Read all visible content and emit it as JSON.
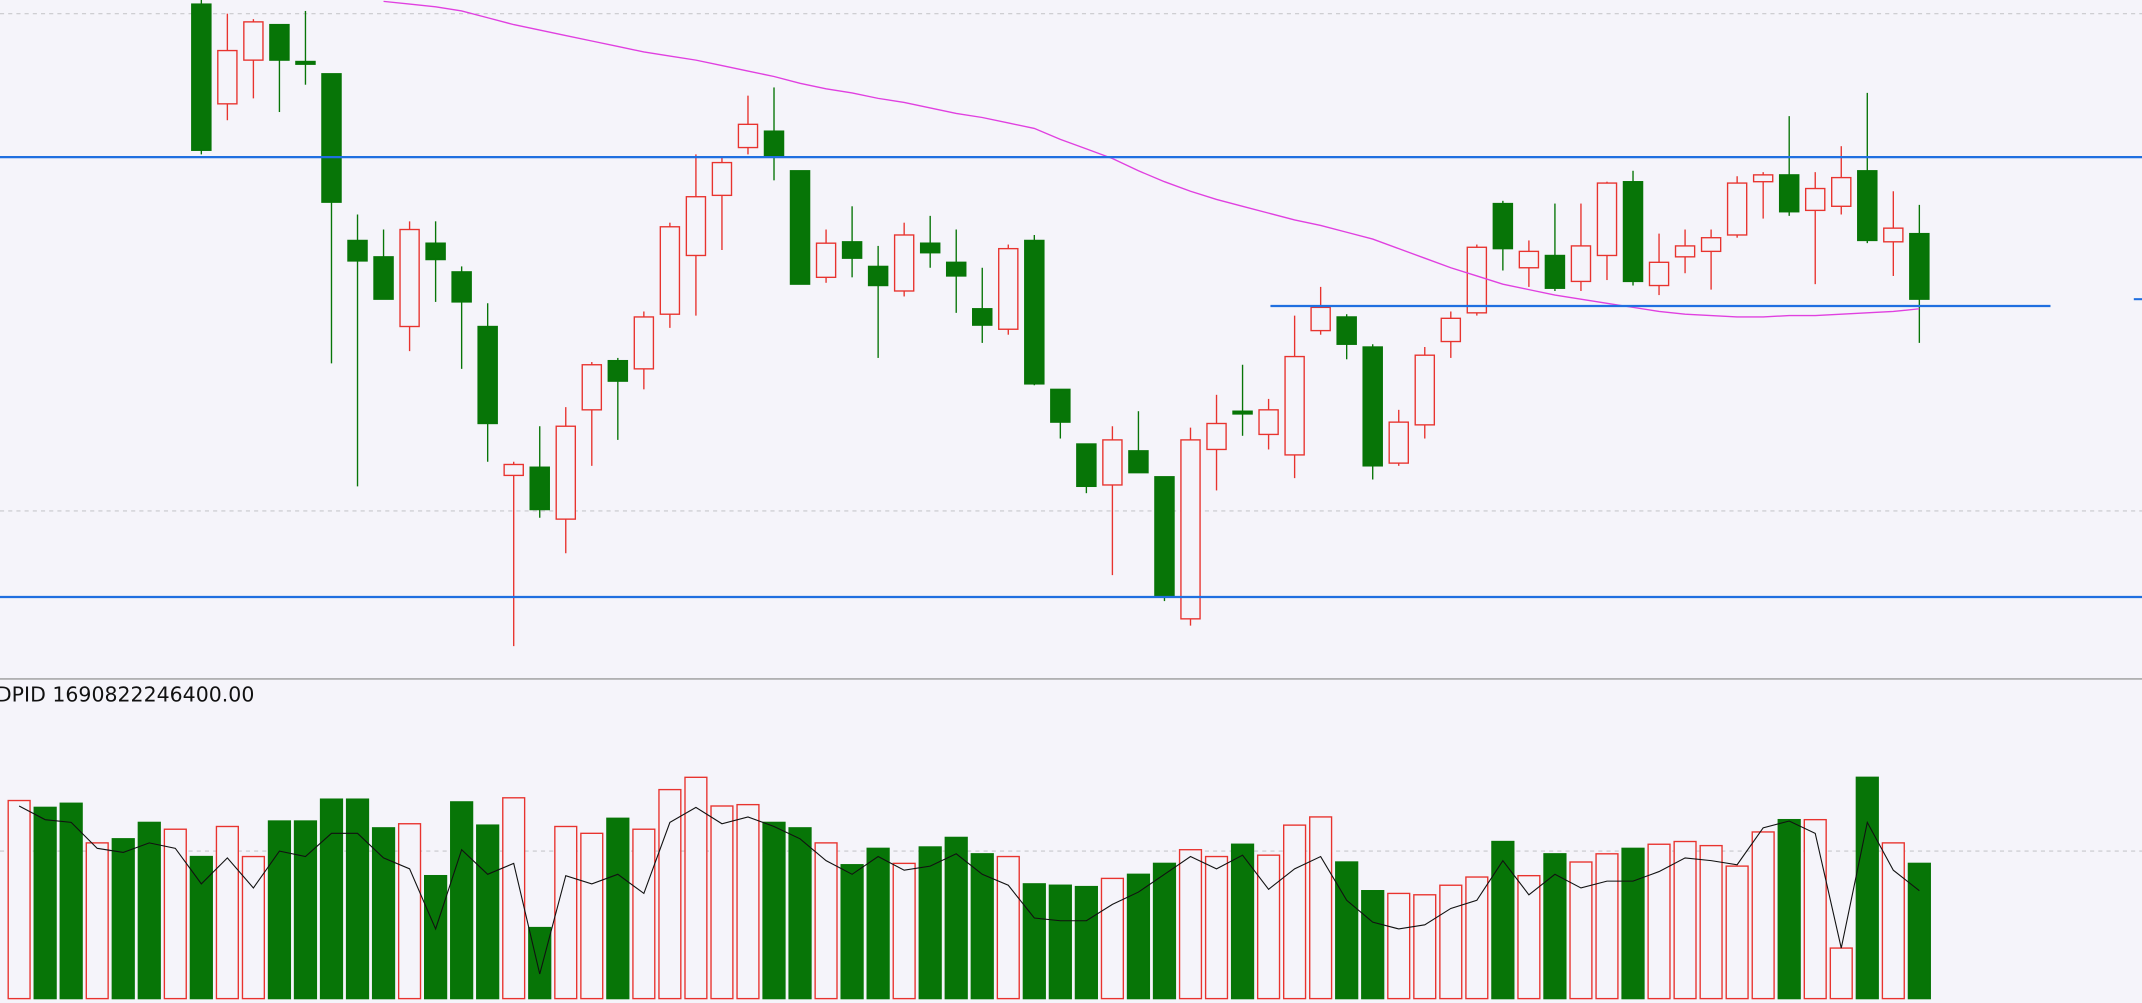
{
  "chart_data": {
    "type": "candlestick",
    "indicator_label": "DPID 1690822246400.00",
    "ylim": [
      3,
      500
    ],
    "grid_values": [
      490,
      126
    ],
    "up_color": "#e8332e",
    "down_color": "#077507",
    "open": [
      null,
      null,
      null,
      null,
      null,
      null,
      null,
      497,
      424,
      456,
      482,
      455,
      446,
      324,
      312,
      261,
      322,
      301,
      261,
      152,
      158,
      120,
      200,
      236,
      230,
      270,
      313,
      357,
      392,
      404,
      375,
      297,
      323,
      305,
      287,
      322,
      308,
      274,
      259,
      324,
      215,
      175,
      145,
      170,
      151,
      47,
      171,
      199,
      182,
      167,
      258,
      268,
      246,
      161,
      189,
      250,
      271,
      351,
      304,
      313,
      294,
      313,
      367,
      291,
      312,
      316,
      328,
      367,
      372,
      346,
      349,
      375,
      323,
      329
    ],
    "high": [
      null,
      null,
      null,
      null,
      null,
      null,
      null,
      500,
      490,
      486,
      482,
      492,
      446,
      343,
      332,
      338,
      338,
      305,
      278,
      162,
      188,
      202,
      235,
      238,
      272,
      337,
      387,
      385,
      430,
      436,
      375,
      332,
      349,
      320,
      337,
      342,
      332,
      304,
      321,
      328,
      215,
      175,
      188,
      199,
      151,
      187,
      211,
      233,
      208,
      269,
      290,
      270,
      248,
      200,
      246,
      272,
      321,
      353,
      324,
      351,
      351,
      367,
      375,
      329,
      332,
      332,
      371,
      374,
      415,
      374,
      393,
      432,
      360,
      350
    ],
    "low": [
      null,
      null,
      null,
      null,
      null,
      null,
      null,
      387,
      412,
      428,
      418,
      438,
      234,
      144,
      281,
      243,
      279,
      230,
      162,
      27,
      121,
      95,
      159,
      178,
      215,
      260,
      269,
      317,
      387,
      368,
      292,
      293,
      297,
      238,
      283,
      304,
      271,
      249,
      255,
      218,
      179,
      139,
      79,
      154,
      60,
      42,
      141,
      181,
      171,
      150,
      255,
      237,
      149,
      159,
      179,
      238,
      269,
      302,
      290,
      287,
      287,
      295,
      291,
      284,
      300,
      288,
      326,
      340,
      342,
      292,
      343,
      322,
      298,
      249
    ],
    "close": [
      null,
      null,
      null,
      null,
      null,
      null,
      null,
      390,
      463,
      484,
      456,
      453,
      352,
      309,
      281,
      332,
      310,
      279,
      190,
      160,
      127,
      188,
      233,
      221,
      268,
      334,
      356,
      381,
      409,
      386,
      292,
      322,
      311,
      291,
      328,
      315,
      298,
      262,
      318,
      219,
      191,
      144,
      178,
      154,
      63,
      178,
      190,
      197,
      200,
      239,
      275,
      248,
      159,
      191,
      240,
      267,
      319,
      318,
      316,
      289,
      320,
      366,
      294,
      308,
      320,
      326,
      366,
      372,
      345,
      362,
      370,
      324,
      333,
      281
    ],
    "ma": {
      "color": "#e040e0",
      "values": [
        null,
        null,
        null,
        null,
        null,
        null,
        null,
        null,
        null,
        null,
        null,
        null,
        null,
        null,
        499,
        497,
        495,
        492,
        487,
        482,
        478,
        474,
        470,
        466,
        462,
        459,
        456,
        452,
        448,
        444,
        439,
        435,
        432,
        428,
        425,
        421,
        417,
        414,
        410,
        406,
        398,
        391,
        384,
        375,
        367,
        360,
        354,
        349,
        344,
        339,
        335,
        330,
        325,
        318,
        311,
        304,
        298,
        292,
        288,
        284,
        281,
        278,
        275,
        272,
        270,
        269,
        268,
        268,
        269,
        269,
        270,
        271,
        272,
        274
      ]
    },
    "levels": {
      "color": "#1f6fe0",
      "values": [
        385,
        63,
        276
      ]
    },
    "volume": {
      "ylim": [
        0,
        234
      ],
      "grid_values": [
        108
      ],
      "up": [
        145,
        null,
        null,
        114,
        null,
        null,
        124,
        null,
        126,
        104,
        null,
        null,
        null,
        null,
        null,
        128,
        null,
        null,
        null,
        147,
        null,
        126,
        121,
        null,
        124,
        153,
        162,
        141,
        142,
        null,
        null,
        114,
        null,
        null,
        99,
        null,
        null,
        null,
        104,
        null,
        null,
        null,
        88,
        null,
        null,
        109,
        104,
        null,
        105,
        127,
        133,
        null,
        null,
        77,
        76,
        83,
        89,
        null,
        90,
        null,
        100,
        106,
        null,
        113,
        115,
        112,
        97,
        122,
        null,
        131,
        37,
        null,
        114,
        null
      ],
      "down": [
        null,
        140,
        143,
        null,
        117,
        129,
        null,
        104,
        null,
        null,
        130,
        130,
        146,
        146,
        125,
        null,
        90,
        144,
        127,
        null,
        52,
        null,
        null,
        132,
        null,
        null,
        null,
        null,
        null,
        129,
        125,
        null,
        98,
        110,
        null,
        111,
        118,
        106,
        null,
        84,
        83,
        82,
        null,
        91,
        99,
        null,
        null,
        113,
        null,
        null,
        null,
        100,
        79,
        null,
        null,
        null,
        null,
        115,
        null,
        106,
        null,
        null,
        110,
        null,
        null,
        null,
        null,
        null,
        131,
        null,
        null,
        162,
        null,
        99
      ],
      "ma": {
        "color": "#111111",
        "values": [
          141,
          131,
          129,
          110,
          107,
          114,
          110,
          84,
          103,
          81,
          108,
          104,
          121,
          121,
          103,
          95,
          51,
          109,
          91,
          99,
          18,
          90,
          84,
          91,
          77,
          129,
          140,
          128,
          133,
          126,
          117,
          101,
          91,
          104,
          94,
          97,
          106,
          91,
          83,
          59,
          57,
          57,
          69,
          78,
          91,
          104,
          95,
          105,
          80,
          95,
          104,
          72,
          56,
          51,
          54,
          66,
          72,
          101,
          76,
          91,
          81,
          86,
          86,
          93,
          103,
          101,
          98,
          125,
          130,
          121,
          37,
          129,
          94,
          79
        ]
      }
    }
  }
}
